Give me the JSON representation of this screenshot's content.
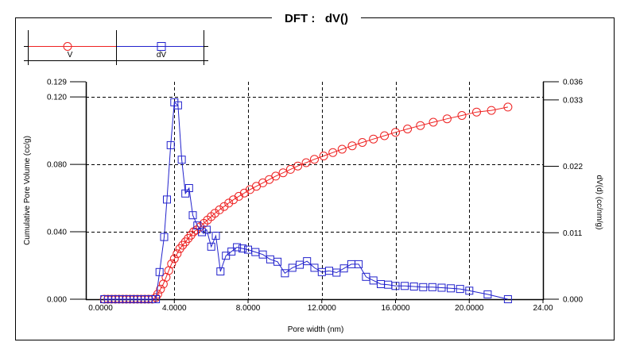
{
  "chart_data": {
    "type": "line",
    "title": "DFT :   dV()",
    "xlabel": "Pore width (nm)",
    "ylabel_left": "Cumulative Pore Volume (cc/g)",
    "ylabel_right": "dV(d) (cc/nm/g)",
    "xlim": [
      -0.8,
      24.0
    ],
    "ylim_left": [
      0.0,
      0.129
    ],
    "ylim_right": [
      0.0,
      0.036
    ],
    "x_ticks": [
      {
        "value": 0.0,
        "label": "0.0000"
      },
      {
        "value": 4.0,
        "label": "4.0000"
      },
      {
        "value": 8.0,
        "label": "8.0000"
      },
      {
        "value": 12.0,
        "label": "12.0000"
      },
      {
        "value": 16.0,
        "label": "16.0000"
      },
      {
        "value": 20.0,
        "label": "20.0000"
      },
      {
        "value": 24.0,
        "label": "24.00"
      }
    ],
    "y_left_ticks": [
      {
        "value": 0.0,
        "label": "0.000"
      },
      {
        "value": 0.04,
        "label": "0.040"
      },
      {
        "value": 0.08,
        "label": "0.080"
      },
      {
        "value": 0.12,
        "label": "0.120"
      },
      {
        "value": 0.129,
        "label": "0.129"
      }
    ],
    "y_right_ticks": [
      {
        "value": 0.0,
        "label": "0.000"
      },
      {
        "value": 0.011,
        "label": "0.011"
      },
      {
        "value": 0.022,
        "label": "0.022"
      },
      {
        "value": 0.033,
        "label": "0.033"
      },
      {
        "value": 0.036,
        "label": "0.036"
      }
    ],
    "grid": true,
    "series": [
      {
        "name": "V",
        "axis": "left",
        "color": "#ee2222",
        "marker": "circle",
        "x": [
          0.2,
          0.4,
          0.6,
          0.8,
          1.0,
          1.2,
          1.4,
          1.6,
          1.8,
          2.0,
          2.2,
          2.4,
          2.6,
          2.8,
          3.0,
          3.1,
          3.25,
          3.4,
          3.55,
          3.7,
          3.85,
          4.0,
          4.15,
          4.3,
          4.45,
          4.6,
          4.75,
          4.9,
          5.05,
          5.2,
          5.4,
          5.6,
          5.8,
          6.0,
          6.2,
          6.45,
          6.7,
          6.95,
          7.2,
          7.5,
          7.8,
          8.1,
          8.45,
          8.8,
          9.15,
          9.5,
          9.9,
          10.3,
          10.7,
          11.15,
          11.6,
          12.1,
          12.6,
          13.1,
          13.65,
          14.2,
          14.8,
          15.4,
          16.0,
          16.65,
          17.35,
          18.05,
          18.8,
          19.6,
          20.4,
          21.2,
          22.1
        ],
        "y": [
          0.0,
          0.0,
          0.0,
          0.0,
          0.0,
          0.0,
          0.0,
          0.0,
          0.0,
          0.0,
          0.0,
          0.0,
          0.0,
          0.0,
          0.001,
          0.003,
          0.006,
          0.009,
          0.013,
          0.017,
          0.021,
          0.024,
          0.027,
          0.03,
          0.032,
          0.034,
          0.036,
          0.038,
          0.04,
          0.041,
          0.043,
          0.045,
          0.047,
          0.049,
          0.051,
          0.053,
          0.055,
          0.057,
          0.059,
          0.061,
          0.063,
          0.065,
          0.067,
          0.069,
          0.071,
          0.073,
          0.075,
          0.077,
          0.079,
          0.081,
          0.083,
          0.085,
          0.087,
          0.089,
          0.091,
          0.093,
          0.095,
          0.097,
          0.099,
          0.101,
          0.103,
          0.105,
          0.107,
          0.109,
          0.111,
          0.112,
          0.114
        ]
      },
      {
        "name": "dV",
        "axis": "right",
        "color": "#2222cc",
        "marker": "square",
        "x": [
          0.2,
          0.4,
          0.6,
          0.8,
          1.0,
          1.2,
          1.4,
          1.6,
          1.8,
          2.0,
          2.2,
          2.4,
          2.6,
          2.8,
          3.0,
          3.2,
          3.45,
          3.6,
          3.8,
          4.0,
          4.2,
          4.4,
          4.6,
          4.8,
          5.0,
          5.25,
          5.5,
          5.75,
          6.0,
          6.25,
          6.5,
          6.8,
          7.1,
          7.4,
          7.7,
          8.0,
          8.4,
          8.8,
          9.2,
          9.6,
          10.0,
          10.4,
          10.8,
          11.2,
          11.6,
          12.0,
          12.4,
          12.8,
          13.2,
          13.6,
          14.0,
          14.4,
          14.8,
          15.2,
          15.6,
          16.0,
          16.5,
          17.0,
          17.5,
          18.0,
          18.5,
          19.0,
          19.5,
          20.0,
          21.0,
          22.1
        ],
        "y": [
          0.0,
          0.0,
          0.0,
          0.0,
          0.0,
          0.0,
          0.0,
          0.0,
          0.0,
          0.0,
          0.0,
          0.0,
          0.0,
          0.0,
          0.0,
          0.0045,
          0.0103,
          0.0165,
          0.0255,
          0.0326,
          0.0321,
          0.0231,
          0.0175,
          0.0184,
          0.0139,
          0.0122,
          0.0111,
          0.0115,
          0.0087,
          0.0105,
          0.0046,
          0.0072,
          0.0079,
          0.0086,
          0.0084,
          0.0082,
          0.0078,
          0.0074,
          0.0066,
          0.0062,
          0.0043,
          0.0052,
          0.0057,
          0.0063,
          0.0052,
          0.0045,
          0.0047,
          0.0044,
          0.0051,
          0.0058,
          0.0058,
          0.0037,
          0.0031,
          0.0025,
          0.0024,
          0.0022,
          0.0022,
          0.0021,
          0.002,
          0.002,
          0.0019,
          0.0018,
          0.0017,
          0.0014,
          0.0008,
          0.0
        ]
      }
    ],
    "legend": {
      "placement": "top-left"
    }
  }
}
